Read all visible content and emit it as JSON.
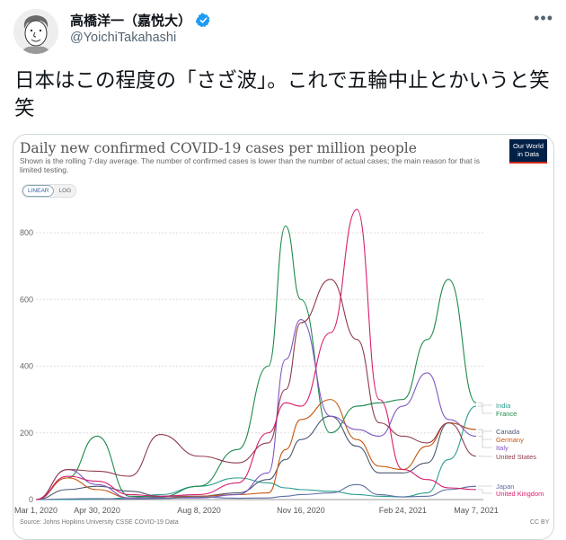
{
  "tweet": {
    "author_name": "高橋洋一（嘉悦大）",
    "handle": "@YoichiTakahashi",
    "verified": true,
    "more_icon": "more-icon",
    "text": "日本はこの程度の「さざ波」。これで五輪中止とかいうと笑笑"
  },
  "chart_card": {
    "title": "Daily new confirmed COVID-19 cases per million people",
    "subtitle": "Shown is the rolling 7-day average. The number of confirmed cases is lower than the number of actual cases; the main reason for that is limited testing.",
    "logo_line1": "Our World",
    "logo_line2": "in Data",
    "toggle": {
      "linear": "LINEAR",
      "log": "LOG",
      "selected": "LINEAR"
    },
    "source": "Source: Johns Hopkins University CSSE COVID-19 Data",
    "license": "CC BY"
  },
  "chart_data": {
    "type": "line",
    "title": "Daily new confirmed COVID-19 cases per million people",
    "xlabel": "",
    "ylabel": "",
    "ylim": [
      0,
      800
    ],
    "yticks": [
      "0",
      "200",
      "400",
      "600",
      "800"
    ],
    "xticks": [
      "Mar 1, 2020",
      "Apr 30, 2020",
      "Aug 8, 2020",
      "Nov 16, 2020",
      "Feb 24, 2021",
      "May 7, 2021"
    ],
    "grid": true,
    "legend_position": "right-end labels",
    "x": [
      "2020-03-01",
      "2020-04-01",
      "2020-04-30",
      "2020-06-01",
      "2020-07-01",
      "2020-08-08",
      "2020-09-15",
      "2020-10-15",
      "2020-11-01",
      "2020-11-16",
      "2020-12-15",
      "2021-01-10",
      "2021-02-01",
      "2021-02-24",
      "2021-03-20",
      "2021-04-10",
      "2021-05-07"
    ],
    "series": [
      {
        "name": "India",
        "color": "#2a9d8f",
        "values": [
          0,
          0,
          1,
          5,
          15,
          40,
          65,
          50,
          35,
          30,
          25,
          15,
          10,
          8,
          20,
          120,
          280
        ]
      },
      {
        "name": "France",
        "color": "#1e8a4c",
        "values": [
          0,
          65,
          190,
          10,
          8,
          40,
          150,
          400,
          820,
          600,
          200,
          280,
          290,
          300,
          480,
          660,
          290
        ]
      },
      {
        "name": "Canada",
        "color": "#4a5870",
        "values": [
          0,
          30,
          40,
          25,
          10,
          10,
          20,
          60,
          120,
          180,
          250,
          160,
          80,
          80,
          110,
          230,
          210
        ]
      },
      {
        "name": "Germany",
        "color": "#c4570f",
        "values": [
          0,
          65,
          30,
          5,
          5,
          10,
          15,
          20,
          150,
          240,
          300,
          180,
          100,
          90,
          160,
          230,
          210
        ]
      },
      {
        "name": "Italy",
        "color": "#7e57c2",
        "values": [
          0,
          90,
          45,
          5,
          5,
          5,
          15,
          80,
          420,
          540,
          250,
          210,
          190,
          280,
          380,
          240,
          190
        ]
      },
      {
        "name": "United States",
        "color": "#8e3b4a",
        "values": [
          0,
          90,
          85,
          70,
          195,
          130,
          110,
          170,
          330,
          530,
          660,
          480,
          230,
          190,
          170,
          230,
          130
        ]
      },
      {
        "name": "Japan",
        "color": "#5c6fa3",
        "values": [
          0,
          2,
          3,
          1,
          3,
          8,
          4,
          5,
          10,
          15,
          20,
          45,
          15,
          8,
          10,
          30,
          40
        ]
      },
      {
        "name": "United Kingdom",
        "color": "#d91e6d",
        "values": [
          0,
          70,
          55,
          15,
          10,
          15,
          50,
          200,
          290,
          280,
          500,
          870,
          300,
          90,
          60,
          35,
          30
        ]
      }
    ]
  }
}
